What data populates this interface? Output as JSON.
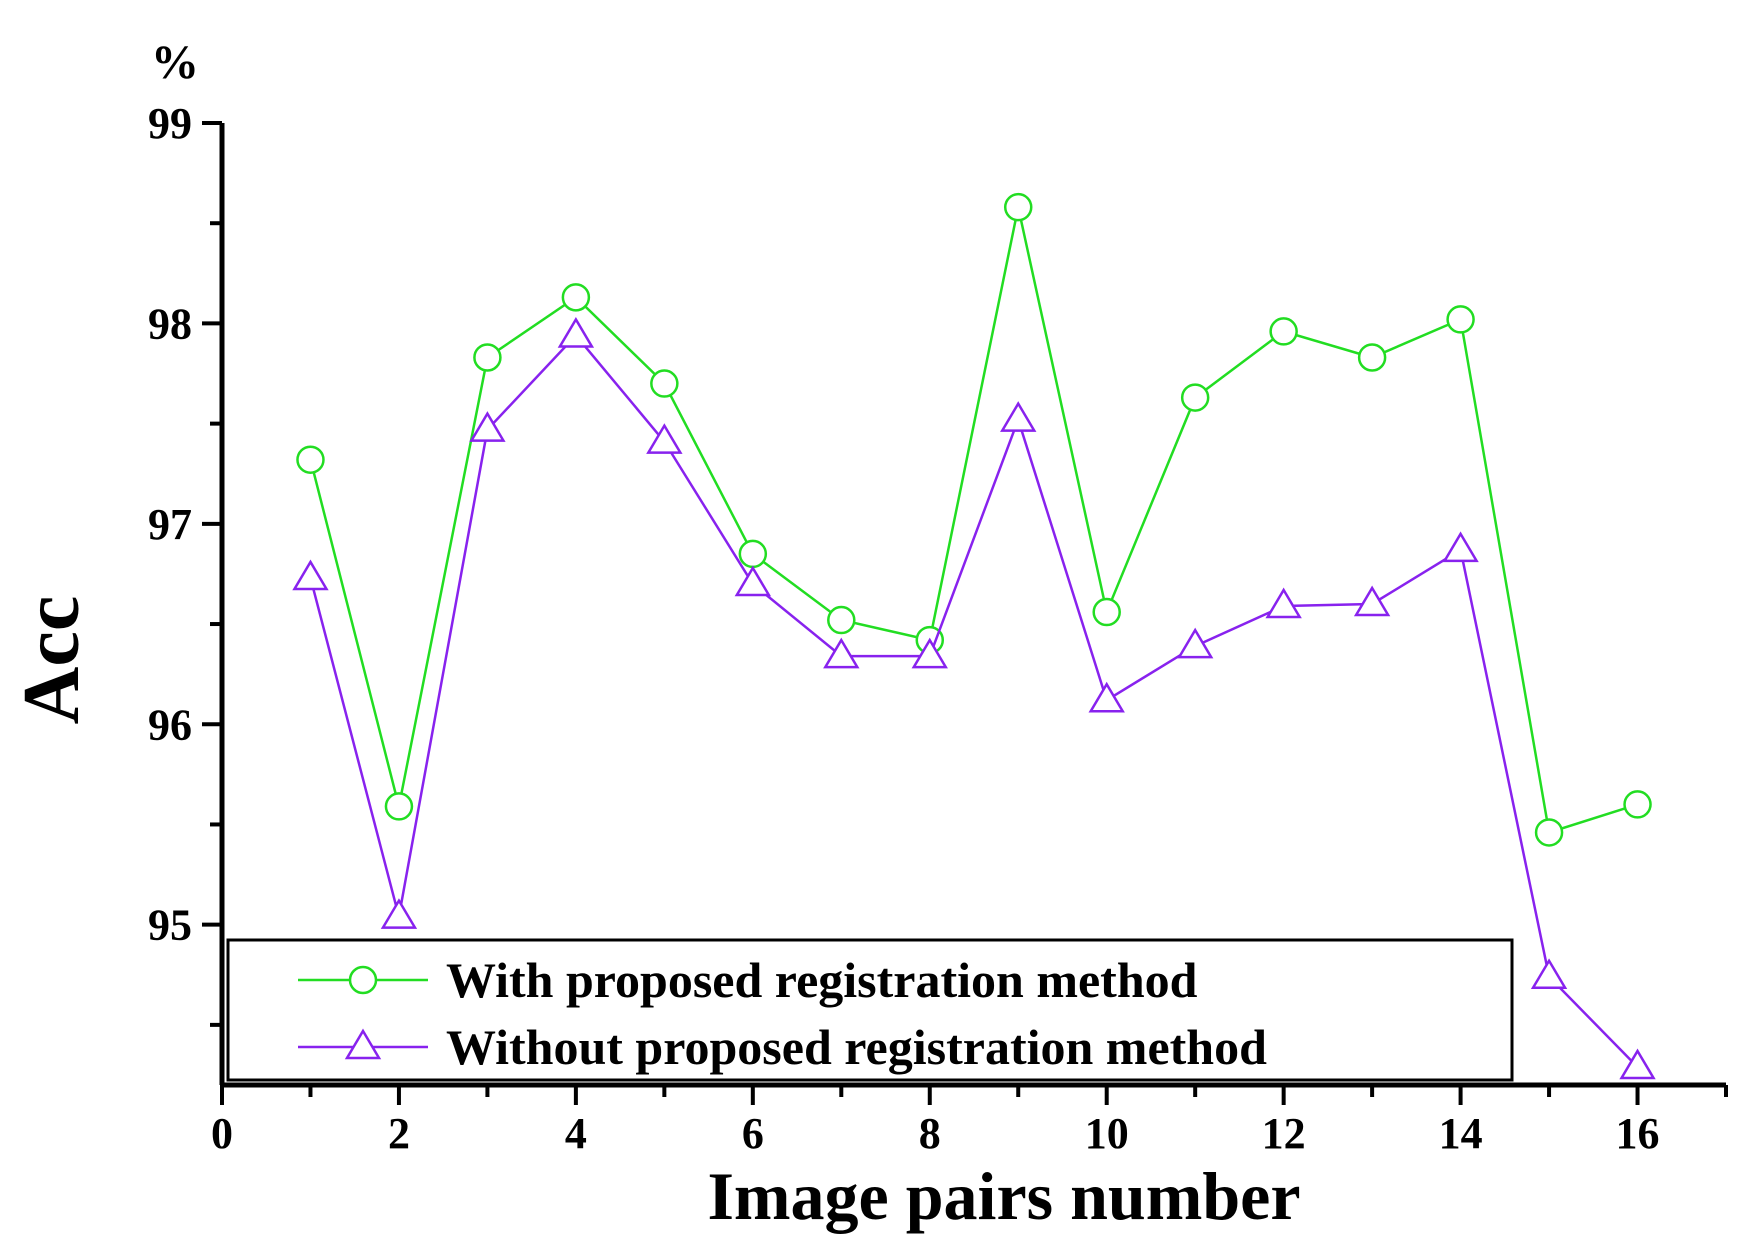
{
  "chart_data": {
    "type": "line",
    "xlabel": "Image pairs number",
    "ylabel": "Acc",
    "yunit": "%",
    "xlim": [
      0,
      17
    ],
    "ylim": [
      94.2,
      99
    ],
    "xticks": [
      0,
      2,
      4,
      6,
      8,
      10,
      12,
      14,
      16
    ],
    "yticks": [
      95,
      96,
      97,
      98,
      99
    ],
    "x": [
      1,
      2,
      3,
      4,
      5,
      6,
      7,
      8,
      9,
      10,
      11,
      12,
      13,
      14,
      15,
      16
    ],
    "series": [
      {
        "name": "With proposed registration method",
        "color": "#22dd22",
        "marker": "circle",
        "values": [
          97.32,
          95.59,
          97.83,
          98.13,
          97.7,
          96.85,
          96.52,
          96.42,
          98.58,
          96.56,
          97.63,
          97.96,
          97.83,
          98.02,
          95.46,
          95.6
        ]
      },
      {
        "name": "Without proposed registration method",
        "color": "#8822ee",
        "marker": "triangle",
        "values": [
          96.73,
          95.04,
          97.47,
          97.94,
          97.41,
          96.7,
          96.34,
          96.34,
          97.52,
          96.12,
          96.39,
          96.59,
          96.6,
          96.87,
          94.74,
          94.29
        ]
      }
    ],
    "legend_position": "bottom-left",
    "grid": false
  }
}
